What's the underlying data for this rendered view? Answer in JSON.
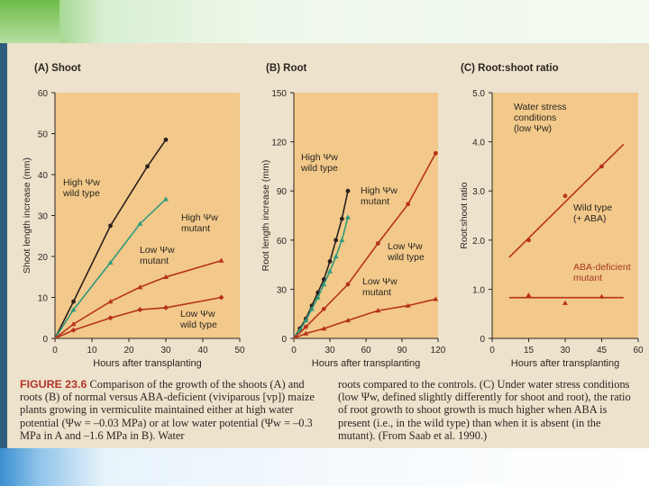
{
  "colors": {
    "plot_bg": "#f2c98a",
    "page_bg": "#ede2cc",
    "dark_series": "#2a2020",
    "green_series": "#2f9a7b",
    "red_series": "#b8321c",
    "label_red": "#a83522"
  },
  "chart_data": [
    {
      "id": "A",
      "type": "line",
      "panel_label": "(A)",
      "title": "Shoot",
      "xlabel": "Hours after transplanting",
      "ylabel": "Shoot length increase (mm)",
      "xlim": [
        0,
        50
      ],
      "ylim": [
        0,
        60
      ],
      "xticks": [
        "0",
        "10",
        "20",
        "30",
        "40",
        "50"
      ],
      "yticks": [
        "0",
        "10",
        "20",
        "30",
        "40",
        "50",
        "60"
      ],
      "series": [
        {
          "name": "High Ψw wild type",
          "label_line1": "High Ψw",
          "label_line2": "wild type",
          "color": "dark",
          "marker": "circle",
          "x": [
            0,
            5,
            15,
            25,
            30
          ],
          "y": [
            0,
            9,
            27.5,
            42,
            48.5
          ]
        },
        {
          "name": "High Ψw mutant",
          "label_line1": "High Ψw",
          "label_line2": "mutant",
          "color": "green",
          "marker": "triangle",
          "x": [
            0,
            5,
            15,
            23,
            30
          ],
          "y": [
            0,
            7,
            18.5,
            28,
            34
          ]
        },
        {
          "name": "Low Ψw mutant",
          "label_line1": "Low Ψw",
          "label_line2": "mutant",
          "color": "red",
          "marker": "triangle",
          "x": [
            0,
            5,
            15,
            23,
            30,
            45
          ],
          "y": [
            0,
            3.5,
            9,
            12.5,
            15,
            19
          ]
        },
        {
          "name": "Low Ψw wild type",
          "label_line1": "Low Ψw",
          "label_line2": "wild type",
          "color": "red",
          "marker": "diamond",
          "x": [
            0,
            5,
            15,
            23,
            30,
            45
          ],
          "y": [
            0,
            2,
            5,
            7,
            7.5,
            10
          ]
        }
      ]
    },
    {
      "id": "B",
      "type": "line",
      "panel_label": "(B)",
      "title": "Root",
      "xlabel": "Hours after transplanting",
      "ylabel": "Root length increase (mm)",
      "xlim": [
        0,
        120
      ],
      "ylim": [
        0,
        150
      ],
      "xticks": [
        "0",
        "30",
        "60",
        "90",
        "120"
      ],
      "yticks": [
        "0",
        "30",
        "60",
        "90",
        "120",
        "150"
      ],
      "series": [
        {
          "name": "High Ψw wild type",
          "label_line1": "High Ψw",
          "label_line2": "wild type",
          "color": "dark",
          "marker": "circle",
          "x": [
            0,
            5,
            10,
            15,
            20,
            25,
            30,
            35,
            40,
            45
          ],
          "y": [
            0,
            6,
            12,
            20,
            28,
            36,
            47,
            60,
            73,
            90
          ]
        },
        {
          "name": "High Ψw mutant",
          "label_line1": "High Ψw",
          "label_line2": "mutant",
          "color": "green",
          "marker": "triangle",
          "x": [
            0,
            5,
            10,
            15,
            20,
            25,
            30,
            35,
            40,
            45
          ],
          "y": [
            0,
            5,
            11,
            18,
            25,
            33,
            41,
            50,
            60,
            74
          ]
        },
        {
          "name": "Low Ψw wild type",
          "label_line1": "Low Ψw",
          "label_line2": "wild type",
          "color": "red",
          "marker": "circle",
          "x": [
            0,
            10,
            25,
            45,
            70,
            95,
            118
          ],
          "y": [
            0,
            7,
            18,
            33,
            58,
            82,
            113
          ]
        },
        {
          "name": "Low Ψw mutant",
          "label_line1": "Low Ψw",
          "label_line2": "mutant",
          "color": "red",
          "marker": "triangle",
          "x": [
            0,
            10,
            25,
            45,
            70,
            95,
            118
          ],
          "y": [
            0,
            3,
            6,
            11,
            17,
            20,
            24
          ]
        }
      ]
    },
    {
      "id": "C",
      "type": "scatter",
      "panel_label": "(C)",
      "title": "Root:shoot ratio",
      "xlabel": "Hours after transplanting",
      "ylabel": "Root:shoot ratio",
      "xlim": [
        0,
        60
      ],
      "ylim": [
        0,
        5
      ],
      "xticks": [
        "0",
        "15",
        "30",
        "45",
        "60"
      ],
      "yticks": [
        "0",
        "1.0",
        "2.0",
        "3.0",
        "4.0",
        "5.0"
      ],
      "annotation": {
        "line1": "Water stress",
        "line2": "conditions",
        "line3": "(low Ψw)"
      },
      "series": [
        {
          "name": "Wild type (+ ABA)",
          "label_line1": "Wild type",
          "label_line2": "(+ ABA)",
          "color": "red",
          "marker": "circle",
          "x": [
            15,
            30,
            45
          ],
          "y": [
            2.0,
            2.9,
            3.5
          ],
          "fit_line": {
            "x": [
              7,
              54
            ],
            "y": [
              1.65,
              3.95
            ]
          }
        },
        {
          "name": "ABA-deficient mutant",
          "label_line1": "ABA-deficient",
          "label_line2": "mutant",
          "color": "red",
          "marker": "triangle",
          "x": [
            15,
            30,
            45
          ],
          "y": [
            0.88,
            0.72,
            0.85
          ],
          "fit_line": {
            "x": [
              7,
              54
            ],
            "y": [
              0.83,
              0.83
            ]
          }
        }
      ]
    }
  ],
  "caption": {
    "figure_label": "FIGURE 23.6",
    "left_text": "Comparison of the growth of the shoots (A) and roots (B) of normal versus ABA-deficient (viviparous [vp]) maize plants growing in vermiculite maintained either at high water potential (Ψw = –0.03 MPa) or at low water potential (Ψw = –0.3 MPa in A and –1.6 MPa in B). Water",
    "right_text": "roots compared to the controls. (C) Under water stress conditions (low Ψw, defined slightly differently for shoot and root), the ratio of root growth to shoot growth is much higher when ABA is present (i.e., in the wild type) than when it is absent (in the mutant). (From Saab et al. 1990.)"
  }
}
